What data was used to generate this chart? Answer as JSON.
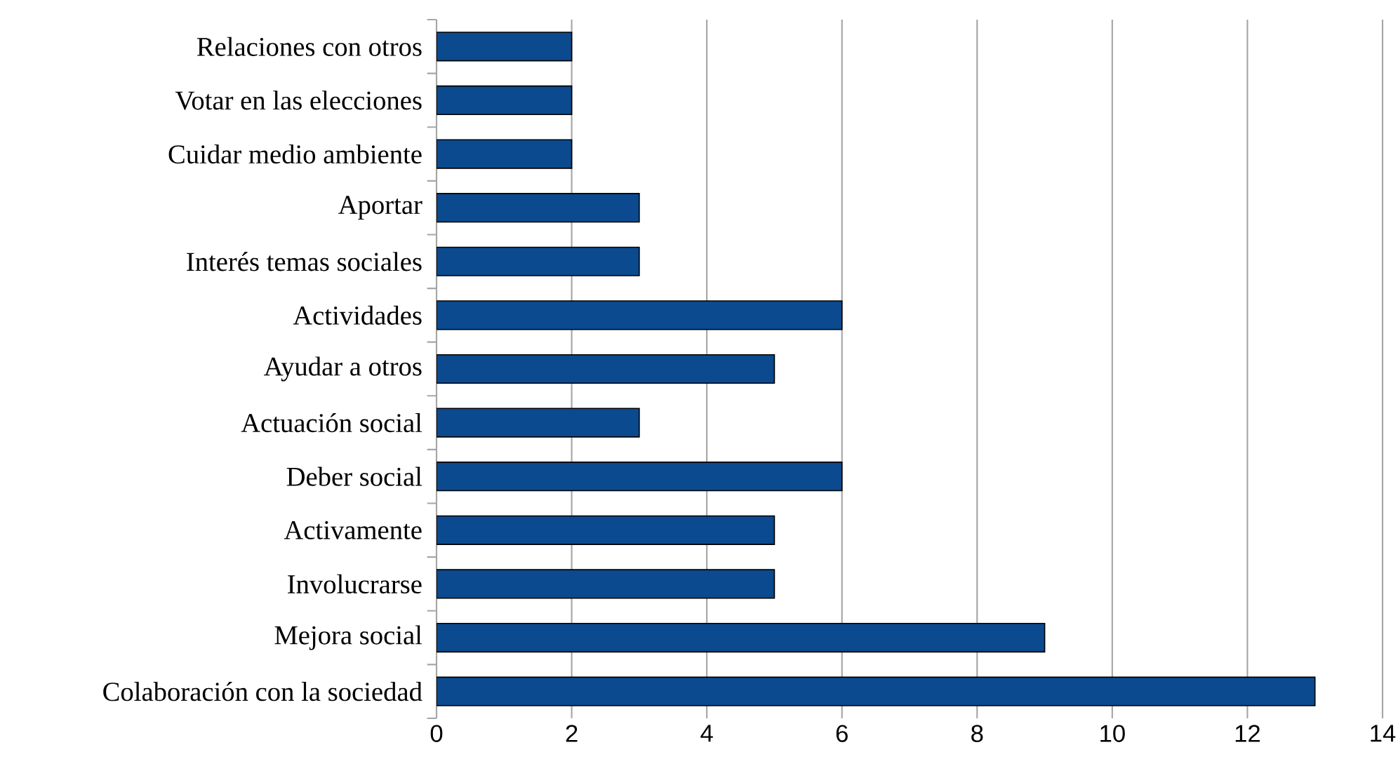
{
  "chart_data": {
    "type": "bar",
    "orientation": "horizontal",
    "categories": [
      "Relaciones con otros",
      "Votar en las elecciones",
      "Cuidar medio ambiente",
      "Aportar",
      "Interés temas sociales",
      "Actividades",
      "Ayudar a otros",
      "Actuación social",
      "Deber social",
      "Activamente",
      "Involucrarse",
      "Mejora social",
      "Colaboración con la sociedad"
    ],
    "values": [
      2,
      2,
      2,
      3,
      3,
      6,
      5,
      3,
      6,
      5,
      5,
      9,
      13
    ],
    "color": "#0b4a8e",
    "xlim": [
      0,
      14
    ],
    "xticks": [
      0,
      2,
      4,
      6,
      8,
      10,
      12,
      14
    ],
    "grid": "x"
  }
}
